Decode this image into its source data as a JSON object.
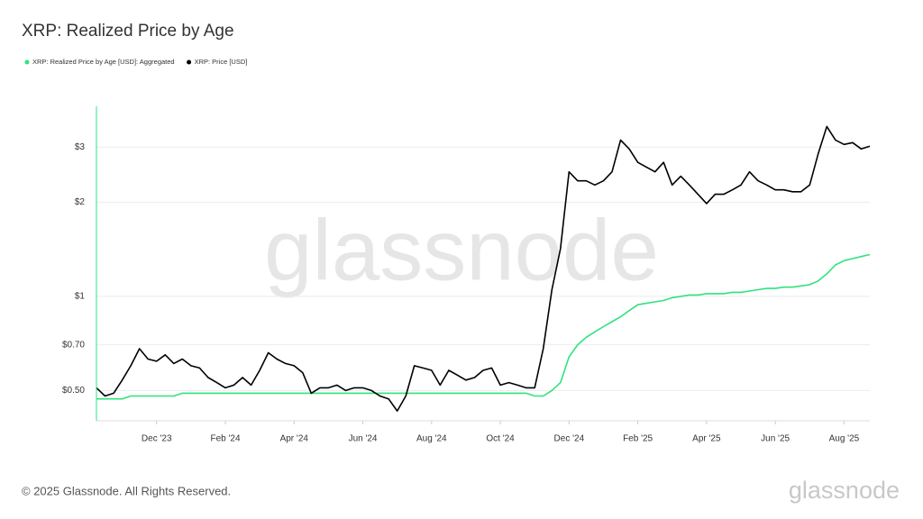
{
  "chart_data": {
    "type": "line",
    "title": "XRP: Realized Price by Age",
    "watermark": "glassnode",
    "logo": "glassnode",
    "footer": "© 2025 Glassnode. All Rights Reserved.",
    "log_scale": true,
    "grid": true,
    "categories": [
      null,
      null,
      null,
      null,
      null,
      null,
      null,
      "Dec '23",
      null,
      null,
      null,
      null,
      null,
      null,
      null,
      "Feb '24",
      null,
      null,
      null,
      null,
      null,
      null,
      null,
      "Apr '24",
      null,
      null,
      null,
      null,
      null,
      null,
      null,
      "Jun '24",
      null,
      null,
      null,
      null,
      null,
      null,
      null,
      "Aug '24",
      null,
      null,
      null,
      null,
      null,
      null,
      null,
      "Oct '24",
      null,
      null,
      null,
      null,
      null,
      null,
      null,
      "Dec '24",
      null,
      null,
      null,
      null,
      null,
      null,
      null,
      "Feb '25",
      null,
      null,
      null,
      null,
      null,
      null,
      null,
      "Apr '25",
      null,
      null,
      null,
      null,
      null,
      null,
      null,
      "Jun '25",
      null,
      null,
      null,
      null,
      null,
      null,
      null,
      "Aug '25",
      null,
      null,
      null
    ],
    "series": [
      {
        "name": "XRP: Realized Price by Age [USD]: Aggregated",
        "color": "#2fe37d",
        "values": [
          0.47,
          0.47,
          0.47,
          0.47,
          0.48,
          0.48,
          0.48,
          0.48,
          0.48,
          0.48,
          0.49,
          0.49,
          0.49,
          0.49,
          0.49,
          0.49,
          0.49,
          0.49,
          0.49,
          0.49,
          0.49,
          0.49,
          0.49,
          0.49,
          0.49,
          0.49,
          0.49,
          0.49,
          0.49,
          0.49,
          0.49,
          0.49,
          0.49,
          0.49,
          0.49,
          0.49,
          0.49,
          0.49,
          0.49,
          0.49,
          0.49,
          0.49,
          0.49,
          0.49,
          0.49,
          0.49,
          0.49,
          0.49,
          0.49,
          0.49,
          0.49,
          0.48,
          0.48,
          0.5,
          0.53,
          0.64,
          0.7,
          0.74,
          0.77,
          0.8,
          0.83,
          0.86,
          0.9,
          0.94,
          0.95,
          0.96,
          0.97,
          0.99,
          1.0,
          1.01,
          1.01,
          1.02,
          1.02,
          1.02,
          1.03,
          1.03,
          1.04,
          1.05,
          1.06,
          1.06,
          1.07,
          1.07,
          1.08,
          1.09,
          1.12,
          1.18,
          1.26,
          1.3,
          1.32,
          1.34,
          1.36
        ]
      },
      {
        "name": "XRP: Price [USD]",
        "color": "#000000",
        "values": [
          0.51,
          0.48,
          0.49,
          0.54,
          0.6,
          0.68,
          0.63,
          0.62,
          0.65,
          0.61,
          0.63,
          0.6,
          0.59,
          0.55,
          0.53,
          0.51,
          0.52,
          0.55,
          0.52,
          0.58,
          0.66,
          0.63,
          0.61,
          0.6,
          0.57,
          0.49,
          0.51,
          0.51,
          0.52,
          0.5,
          0.51,
          0.51,
          0.5,
          0.48,
          0.47,
          0.43,
          0.48,
          0.6,
          0.59,
          0.58,
          0.52,
          0.58,
          0.56,
          0.54,
          0.55,
          0.58,
          0.59,
          0.52,
          0.53,
          0.52,
          0.51,
          0.51,
          0.68,
          1.05,
          1.42,
          2.5,
          2.34,
          2.34,
          2.27,
          2.34,
          2.5,
          3.16,
          2.96,
          2.68,
          2.59,
          2.5,
          2.68,
          2.27,
          2.42,
          2.27,
          2.12,
          1.98,
          2.12,
          2.12,
          2.19,
          2.27,
          2.5,
          2.34,
          2.27,
          2.19,
          2.19,
          2.16,
          2.16,
          2.27,
          2.86,
          3.49,
          3.16,
          3.06,
          3.1,
          2.96,
          3.02
        ]
      }
    ],
    "ylim": [
      0.4,
      4.05
    ],
    "yticks": [
      {
        "value": 0.5,
        "label": "$0.50"
      },
      {
        "value": 0.7,
        "label": "$0.70"
      },
      {
        "value": 1,
        "label": "$1"
      },
      {
        "value": 2,
        "label": "$2"
      },
      {
        "value": 3,
        "label": "$3"
      }
    ]
  }
}
